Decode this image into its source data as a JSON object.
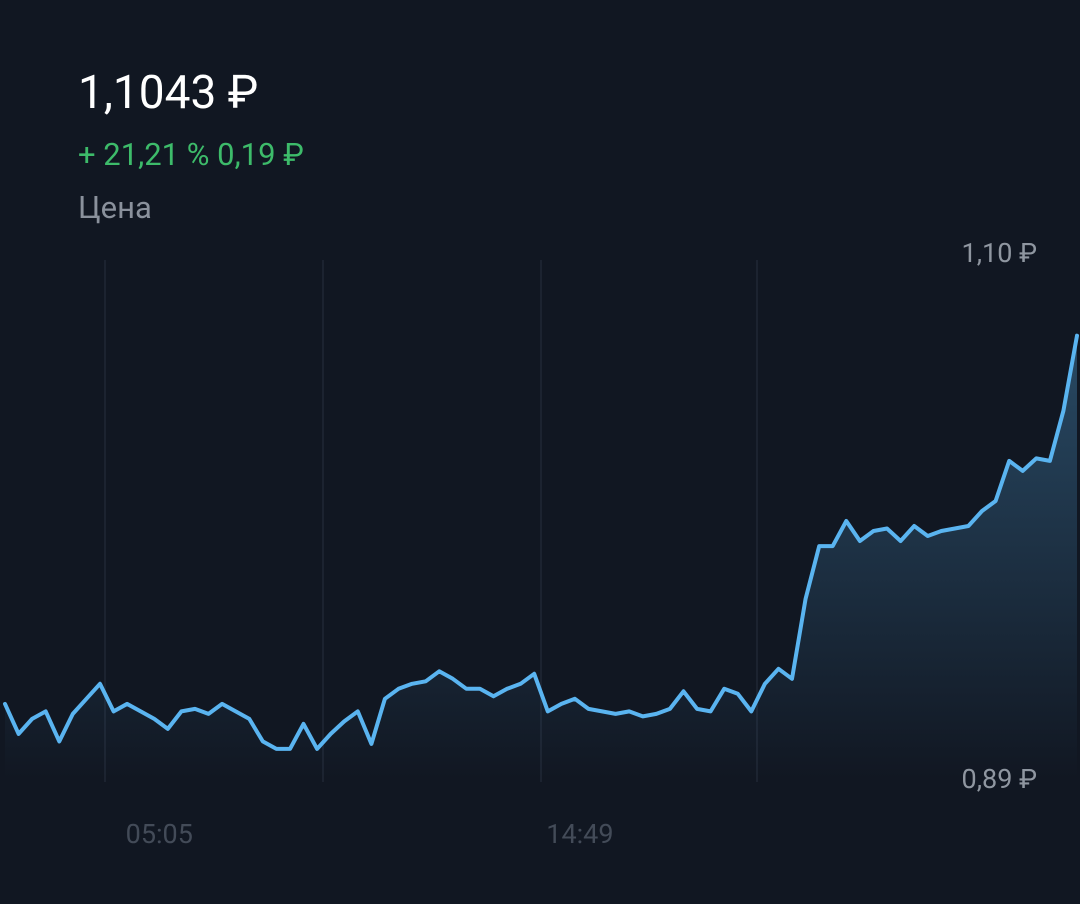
{
  "header": {
    "price": "1,1043 ₽",
    "change": "+ 21,21 % 0,19 ₽",
    "caption": "Цена"
  },
  "chart_data": {
    "type": "line",
    "color": "#5ab4f0",
    "x": [
      null,
      null,
      null,
      null,
      null,
      null,
      null,
      null,
      null,
      null,
      null,
      "05:05",
      null,
      null,
      null,
      null,
      null,
      null,
      null,
      null,
      null,
      null,
      null,
      null,
      null,
      null,
      null,
      null,
      null,
      null,
      null,
      null,
      null,
      null,
      null,
      null,
      null,
      null,
      null,
      null,
      null,
      null,
      "14:49",
      null,
      null,
      null,
      null,
      null,
      null,
      null,
      null,
      null,
      null,
      null,
      null,
      null,
      null,
      null,
      null,
      null,
      null,
      null,
      null,
      null,
      null,
      null,
      null,
      null,
      null,
      null,
      null,
      null,
      null,
      null,
      null,
      null,
      null,
      null,
      null,
      null
    ],
    "values": [
      0.92,
      0.908,
      0.914,
      0.917,
      0.905,
      0.916,
      0.922,
      0.928,
      0.917,
      0.92,
      0.917,
      0.914,
      0.91,
      0.917,
      0.918,
      0.916,
      0.92,
      0.917,
      0.914,
      0.905,
      0.902,
      0.902,
      0.912,
      0.902,
      0.908,
      0.913,
      0.917,
      0.904,
      0.922,
      0.926,
      0.928,
      0.929,
      0.933,
      0.93,
      0.926,
      0.926,
      0.923,
      0.926,
      0.928,
      0.932,
      0.917,
      0.92,
      0.922,
      0.918,
      0.917,
      0.916,
      0.917,
      0.915,
      0.916,
      0.918,
      0.925,
      0.918,
      0.917,
      0.926,
      0.924,
      0.917,
      0.928,
      0.934,
      0.93,
      0.962,
      0.983,
      0.983,
      0.993,
      0.985,
      0.989,
      0.99,
      0.985,
      0.991,
      0.987,
      0.989,
      0.99,
      0.991,
      0.997,
      1.001,
      1.017,
      1.013,
      1.018,
      1.017,
      1.037,
      1.067
    ],
    "ylim": [
      0.89,
      1.1
    ],
    "yticks": [
      {
        "value": 1.1,
        "label": "1,10 ₽"
      },
      {
        "value": 0.89,
        "label": "0,89 ₽"
      }
    ]
  }
}
